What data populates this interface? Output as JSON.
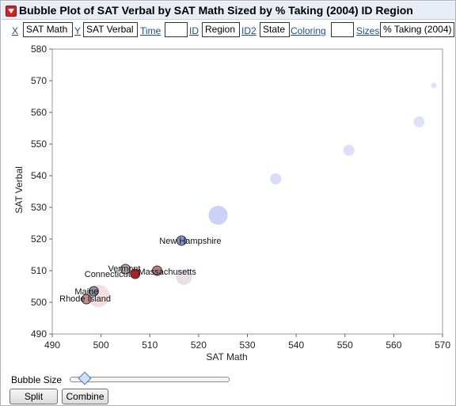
{
  "window": {
    "title": "Bubble Plot of SAT Verbal by SAT Math Sized by % Taking (2004) ID Region"
  },
  "roles": {
    "x_link": "X",
    "x_value": "SAT Math",
    "y_link": "Y",
    "y_value": "SAT Verbal",
    "time_link": "Time",
    "time_value": "",
    "id_link": "ID",
    "id_value": "Region",
    "id2_link": "ID2",
    "id2_value": "State",
    "coloring_link": "Coloring",
    "coloring_value": "",
    "sizes_link": "Sizes",
    "sizes_value": "% Taking (2004)"
  },
  "chart_data": {
    "type": "scatter",
    "xlabel": "SAT Math",
    "ylabel": "SAT Verbal",
    "xlim": [
      490,
      570
    ],
    "ylim": [
      490,
      580
    ],
    "xticks": [
      490,
      500,
      510,
      520,
      530,
      540,
      550,
      560,
      570
    ],
    "yticks": [
      490,
      500,
      510,
      520,
      530,
      540,
      550,
      560,
      570,
      580
    ],
    "grid": false,
    "points": [
      {
        "label": "New Hampshire",
        "x": 516.5,
        "y": 519.5,
        "size": 6,
        "color": "#8b96c8",
        "highlight": true
      },
      {
        "label": "Vermont",
        "x": 505,
        "y": 510.5,
        "size": 6,
        "color": "#b5a7b4",
        "highlight": true
      },
      {
        "label": "Massachusetts",
        "x": 511.5,
        "y": 510,
        "size": 6,
        "color": "#b57e7e",
        "highlight": true
      },
      {
        "label": "Connecticut",
        "x": 507,
        "y": 509,
        "size": 6,
        "color": "#b01c2a",
        "highlight": true
      },
      {
        "label": "Maine",
        "x": 498.5,
        "y": 503.5,
        "size": 6,
        "color": "#8a90a8",
        "highlight": true
      },
      {
        "label": "Rhode Island",
        "x": 497,
        "y": 501,
        "size": 6,
        "color": "#c09090",
        "highlight": true
      },
      {
        "label": "",
        "x": 499.5,
        "y": 502,
        "size": 14,
        "color": "#f2dcdc",
        "highlight": false
      },
      {
        "label": "",
        "x": 517,
        "y": 508,
        "size": 10,
        "color": "#e9dce4",
        "highlight": false
      },
      {
        "label": "",
        "x": 524,
        "y": 527.5,
        "size": 12,
        "color": "#c8ccf4",
        "highlight": false
      },
      {
        "label": "",
        "x": 535.8,
        "y": 539,
        "size": 7,
        "color": "#d4d8f6",
        "highlight": false
      },
      {
        "label": "",
        "x": 550.8,
        "y": 548,
        "size": 7,
        "color": "#d8dcf6",
        "highlight": false
      },
      {
        "label": "",
        "x": 565.2,
        "y": 557,
        "size": 7,
        "color": "#dcdff6",
        "highlight": false
      },
      {
        "label": "",
        "x": 568.2,
        "y": 568.5,
        "size": 3.5,
        "color": "#dcdff6",
        "highlight": false
      }
    ]
  },
  "controls": {
    "bubble_size_label": "Bubble Size",
    "bubble_size_level": 0.07,
    "split_label": "Split",
    "combine_label": "Combine"
  }
}
